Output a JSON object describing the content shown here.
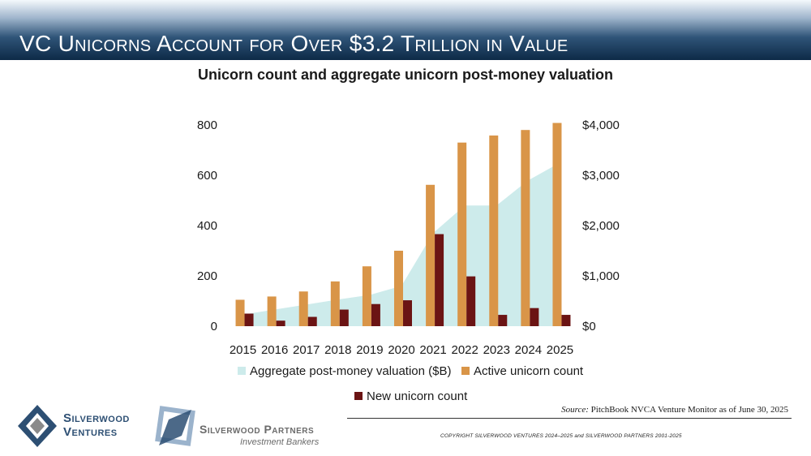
{
  "header": {
    "title": "VC Unicorns Account for Over $3.2 Trillion in Value"
  },
  "chart_data": {
    "type": "bar",
    "title": "Unicorn count and aggregate unicorn post-money valuation",
    "categories": [
      "2015",
      "2016",
      "2017",
      "2018",
      "2019",
      "2020",
      "2021",
      "2022",
      "2023",
      "2024",
      "2025"
    ],
    "y_left": {
      "ylim": [
        0,
        800
      ],
      "ticks": [
        "0",
        "200",
        "400",
        "600",
        "800"
      ]
    },
    "y_right": {
      "ylim": [
        0,
        4000
      ],
      "ticks": [
        "$0",
        "$1,000",
        "$2,000",
        "$3,000",
        "$4,000"
      ]
    },
    "series": [
      {
        "name": "Aggregate post-money valuation ($B)",
        "kind": "area",
        "axis": "right",
        "color": "#cdebeb",
        "values": [
          230,
          330,
          430,
          530,
          620,
          800,
          1850,
          2400,
          2400,
          2900,
          3250
        ]
      },
      {
        "name": "Active unicorn count",
        "kind": "bar",
        "axis": "left",
        "color": "#d99548",
        "values": [
          105,
          118,
          138,
          178,
          238,
          300,
          562,
          730,
          758,
          780,
          808
        ]
      },
      {
        "name": "New unicorn count",
        "kind": "bar",
        "axis": "left",
        "color": "#6b1414",
        "values": [
          50,
          22,
          37,
          66,
          88,
          103,
          366,
          198,
          45,
          72,
          45
        ]
      }
    ],
    "legend": "bottom",
    "grid": false
  },
  "source": {
    "label": "Source:",
    "text": "PitchBook NVCA Venture Monitor as of June 30, 2025"
  },
  "copyright": "COPYRIGHT SILVERWOOD VENTURES 2024–2025 and SILVERWOOD PARTNERS 2001-2025",
  "logos": {
    "ventures_line1": "Silverwood",
    "ventures_line2": "Ventures",
    "partners_name": "Silverwood Partners",
    "partners_sub": "Investment Bankers"
  }
}
